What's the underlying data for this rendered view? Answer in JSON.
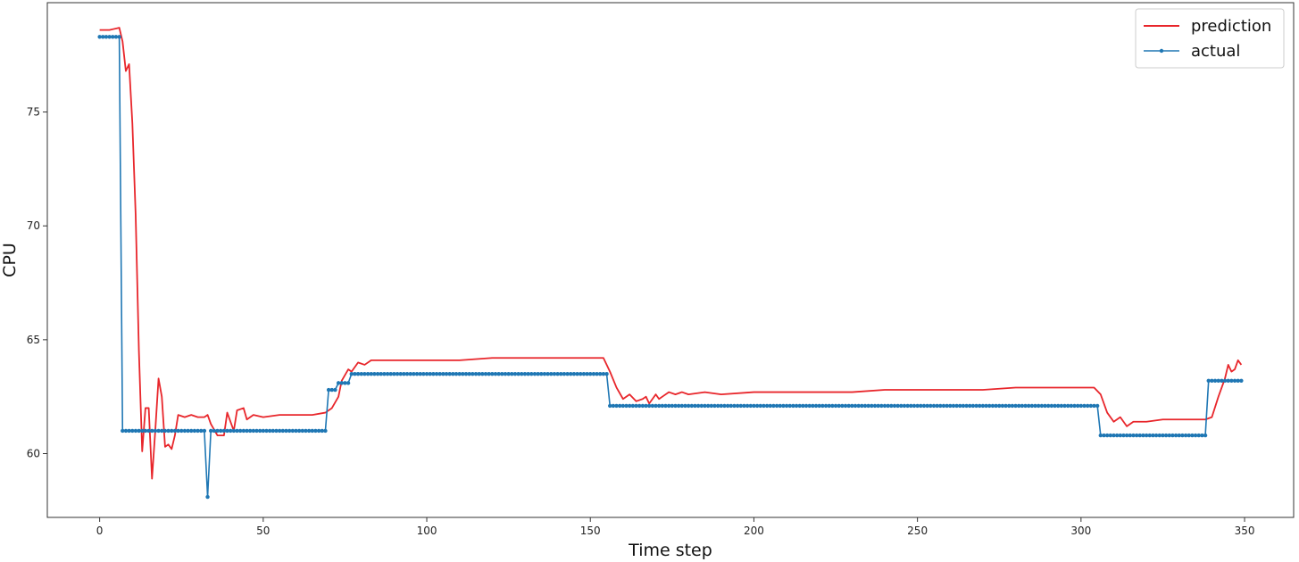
{
  "chart_data": {
    "type": "line",
    "title": "",
    "xlabel": "Time step",
    "ylabel": "CPU",
    "xlim": [
      -16,
      365
    ],
    "ylim": [
      57.2,
      79.8
    ],
    "xticks": [
      0,
      50,
      100,
      150,
      200,
      250,
      300,
      350
    ],
    "yticks": [
      60,
      65,
      70,
      75
    ],
    "grid": false,
    "legend_position": "top-right",
    "series": [
      {
        "name": "prediction",
        "color": "#e8262b",
        "marker": "none",
        "points": [
          [
            0,
            78.6
          ],
          [
            3,
            78.6
          ],
          [
            6,
            78.7
          ],
          [
            7,
            78.1
          ],
          [
            8,
            76.8
          ],
          [
            9,
            77.1
          ],
          [
            10,
            74.5
          ],
          [
            11,
            70.5
          ],
          [
            12,
            64.5
          ],
          [
            13,
            60.1
          ],
          [
            14,
            62.0
          ],
          [
            15,
            62.0
          ],
          [
            16,
            58.9
          ],
          [
            17,
            61.0
          ],
          [
            18,
            63.3
          ],
          [
            19,
            62.5
          ],
          [
            20,
            60.3
          ],
          [
            21,
            60.4
          ],
          [
            22,
            60.2
          ],
          [
            23,
            60.8
          ],
          [
            24,
            61.7
          ],
          [
            26,
            61.6
          ],
          [
            28,
            61.7
          ],
          [
            30,
            61.6
          ],
          [
            32,
            61.6
          ],
          [
            33,
            61.7
          ],
          [
            34,
            61.3
          ],
          [
            36,
            60.8
          ],
          [
            38,
            60.8
          ],
          [
            39,
            61.8
          ],
          [
            41,
            61.0
          ],
          [
            42,
            61.9
          ],
          [
            44,
            62.0
          ],
          [
            45,
            61.5
          ],
          [
            47,
            61.7
          ],
          [
            50,
            61.6
          ],
          [
            55,
            61.7
          ],
          [
            60,
            61.7
          ],
          [
            65,
            61.7
          ],
          [
            69,
            61.8
          ],
          [
            71,
            62.0
          ],
          [
            73,
            62.5
          ],
          [
            74,
            63.2
          ],
          [
            76,
            63.7
          ],
          [
            77,
            63.6
          ],
          [
            79,
            64.0
          ],
          [
            81,
            63.9
          ],
          [
            83,
            64.1
          ],
          [
            90,
            64.1
          ],
          [
            100,
            64.1
          ],
          [
            110,
            64.1
          ],
          [
            120,
            64.2
          ],
          [
            130,
            64.2
          ],
          [
            140,
            64.2
          ],
          [
            150,
            64.2
          ],
          [
            154,
            64.2
          ],
          [
            156,
            63.6
          ],
          [
            158,
            62.9
          ],
          [
            160,
            62.4
          ],
          [
            162,
            62.6
          ],
          [
            164,
            62.3
          ],
          [
            166,
            62.4
          ],
          [
            167,
            62.5
          ],
          [
            168,
            62.2
          ],
          [
            170,
            62.6
          ],
          [
            171,
            62.4
          ],
          [
            172,
            62.5
          ],
          [
            174,
            62.7
          ],
          [
            176,
            62.6
          ],
          [
            178,
            62.7
          ],
          [
            180,
            62.6
          ],
          [
            185,
            62.7
          ],
          [
            190,
            62.6
          ],
          [
            200,
            62.7
          ],
          [
            210,
            62.7
          ],
          [
            220,
            62.7
          ],
          [
            230,
            62.7
          ],
          [
            240,
            62.8
          ],
          [
            250,
            62.8
          ],
          [
            260,
            62.8
          ],
          [
            270,
            62.8
          ],
          [
            280,
            62.9
          ],
          [
            290,
            62.9
          ],
          [
            300,
            62.9
          ],
          [
            304,
            62.9
          ],
          [
            306,
            62.6
          ],
          [
            308,
            61.8
          ],
          [
            310,
            61.4
          ],
          [
            312,
            61.6
          ],
          [
            314,
            61.2
          ],
          [
            316,
            61.4
          ],
          [
            320,
            61.4
          ],
          [
            325,
            61.5
          ],
          [
            330,
            61.5
          ],
          [
            335,
            61.5
          ],
          [
            338,
            61.5
          ],
          [
            340,
            61.6
          ],
          [
            342,
            62.5
          ],
          [
            344,
            63.3
          ],
          [
            345,
            63.9
          ],
          [
            346,
            63.6
          ],
          [
            347,
            63.7
          ],
          [
            348,
            64.1
          ],
          [
            349,
            63.9
          ]
        ]
      },
      {
        "name": "actual",
        "color": "#1f77b4",
        "marker": "dot",
        "step_segments": [
          {
            "x_start": 0,
            "x_end": 6,
            "value": 78.3
          },
          {
            "x_start": 7,
            "x_end": 32,
            "value": 61.0
          },
          {
            "x_start": 33,
            "x_end": 33,
            "value": 58.1
          },
          {
            "x_start": 34,
            "x_end": 69,
            "value": 61.0
          },
          {
            "x_start": 70,
            "x_end": 72,
            "value": 62.8
          },
          {
            "x_start": 73,
            "x_end": 76,
            "value": 63.1
          },
          {
            "x_start": 77,
            "x_end": 155,
            "value": 63.5
          },
          {
            "x_start": 156,
            "x_end": 305,
            "value": 62.1
          },
          {
            "x_start": 306,
            "x_end": 338,
            "value": 60.8
          },
          {
            "x_start": 339,
            "x_end": 349,
            "value": 63.2
          }
        ]
      }
    ]
  }
}
